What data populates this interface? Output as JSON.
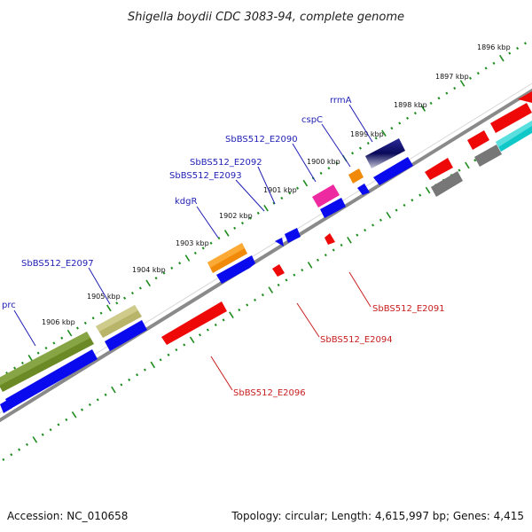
{
  "title": "Shigella boydii CDC 3083-94, complete genome",
  "footer": {
    "accession": "Accession: NC_010658",
    "summary": "Topology: circular; Length: 4,615,997 bp; Genes: 4,415"
  },
  "colors": {
    "background": "#ffffff",
    "backbone": "#888888",
    "tick": "#1e8c1e",
    "label_forward": "#1f1fb4",
    "label_reverse": "#c81e1e",
    "feature_blue": "#0a0aee",
    "feature_red": "#ee0808",
    "feature_olive": "#6b8a25",
    "feature_khaki": "#b8b46a",
    "feature_orange": "#f08a08",
    "feature_magenta": "#ee2aa0",
    "feature_navy": "#0a0a7a",
    "feature_gray": "#777777",
    "feature_cyan": "#10c8c8"
  },
  "kbp_labels": [
    "1896 kbp",
    "1897 kbp",
    "1898 kbp",
    "1899 kbp",
    "1900 kbp",
    "1901 kbp",
    "1902 kbp",
    "1903 kbp",
    "1904 kbp",
    "1905 kbp",
    "1906 kbp"
  ],
  "gene_labels_forward": [
    "rrmA",
    "cspC",
    "SbBS512_E2090",
    "SbBS512_E2092",
    "SbBS512_E2093",
    "kdgR",
    "SbBS512_E2097",
    "prc"
  ],
  "gene_labels_reverse": [
    "SbBS512_E2091",
    "SbBS512_E2094",
    "SbBS512_E2096"
  ]
}
